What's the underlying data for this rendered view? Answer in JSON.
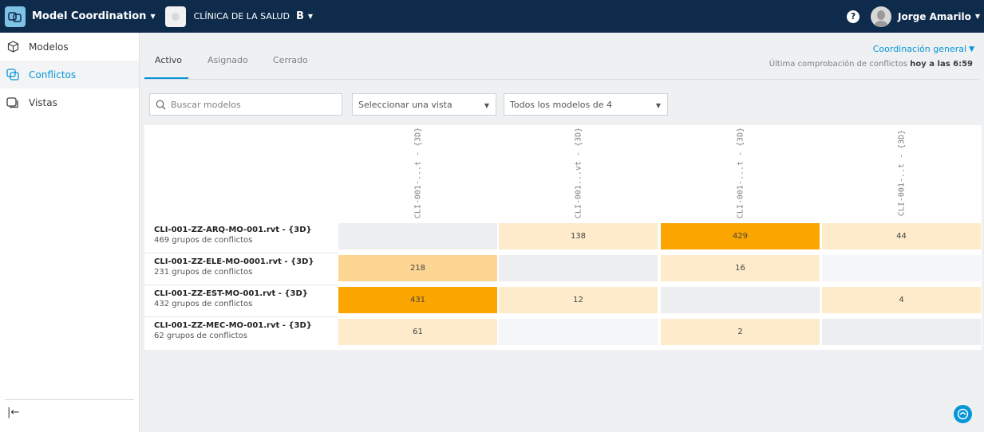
{
  "header": {
    "app_name": "Model Coordination",
    "project_name": "CLÍNICA DE LA SALUD",
    "project_badge": "B",
    "help_label": "?",
    "user_name": "Jorge Amarilo"
  },
  "sidebar": {
    "items": [
      {
        "label": "Modelos",
        "icon": "cube-icon"
      },
      {
        "label": "Conflictos",
        "icon": "clash-icon"
      },
      {
        "label": "Vistas",
        "icon": "views-icon"
      }
    ],
    "collapse_label": "|←"
  },
  "tabs": [
    {
      "label": "Activo"
    },
    {
      "label": "Asignado"
    },
    {
      "label": "Cerrado"
    }
  ],
  "coordination": {
    "space_label": "Coordinación general",
    "last_check_prefix": "Última comprobación de conflictos",
    "last_check_time": "hoy a las 6:59"
  },
  "filters": {
    "search_placeholder": "Buscar modelos",
    "view_select": "Seleccionar una vista",
    "models_select": "Todos los modelos de 4"
  },
  "matrix": {
    "columns": [
      "CLI-001-...t - {3D}",
      "CLI-001...vt - {3D}",
      "CLI-001-...t - {3D}",
      "CLI-001-..t - {3D}"
    ],
    "rows": [
      {
        "name": "CLI-001-ZZ-ARQ-MO-001.rvt - {3D}",
        "groups": "469 grupos de conflictos",
        "cells": [
          "",
          "138",
          "429",
          "44"
        ]
      },
      {
        "name": "CLI-001-ZZ-ELE-MO-0001.rvt - {3D}",
        "groups": "231 grupos de conflictos",
        "cells": [
          "218",
          "",
          "16",
          ""
        ]
      },
      {
        "name": "CLI-001-ZZ-EST-MO-001.rvt - {3D}",
        "groups": "432 grupos de conflictos",
        "cells": [
          "431",
          "12",
          "",
          "4"
        ]
      },
      {
        "name": "CLI-001-ZZ-MEC-MO-001.rvt - {3D}",
        "groups": "62 grupos de conflictos",
        "cells": [
          "61",
          "",
          "2",
          ""
        ]
      }
    ],
    "colors": {
      "diagonal": "#eceef0",
      "empty": "#f5f6f7",
      "low": "#fdebcb",
      "medium": "#fcd592",
      "high": "#fba500"
    }
  }
}
